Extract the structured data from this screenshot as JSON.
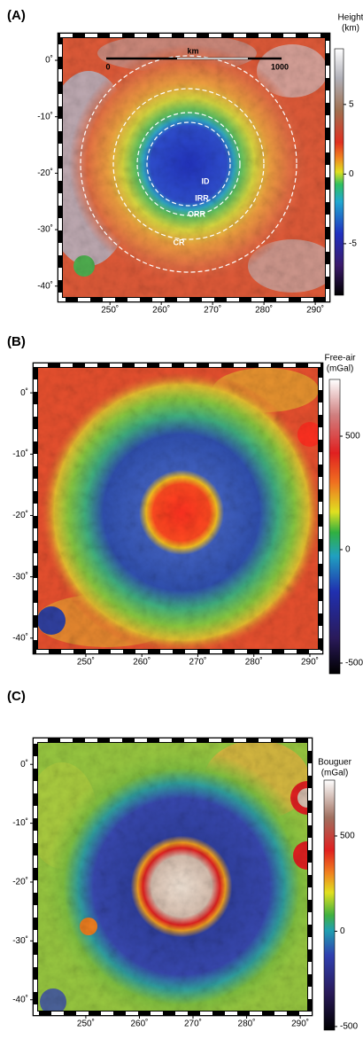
{
  "panels": [
    {
      "label": "(A)",
      "colorbar": {
        "title": "Height",
        "unit": "(km)",
        "clim": [
          -8.7,
          9.0
        ],
        "ticks": [
          5,
          0,
          -5
        ]
      },
      "xlim": [
        240.3,
        292.4
      ],
      "ylim": [
        -42.4,
        4.4
      ],
      "xticks": [
        {
          "value": 250,
          "label": "250˚"
        },
        {
          "value": 260,
          "label": "260˚"
        },
        {
          "value": 270,
          "label": "270˚"
        },
        {
          "value": 280,
          "label": "280˚"
        },
        {
          "value": 290,
          "label": "290˚"
        }
      ],
      "yticks": [
        {
          "value": 0,
          "label": "0˚"
        },
        {
          "value": -10,
          "label": "-10˚"
        },
        {
          "value": -20,
          "label": "-20˚"
        },
        {
          "value": -30,
          "label": "-30˚"
        },
        {
          "value": -40,
          "label": "-40˚"
        }
      ],
      "annotations": [
        "km",
        "0",
        "1000",
        "ID",
        "IRR",
        "ORR",
        "CR"
      ]
    },
    {
      "label": "(B)",
      "colorbar": {
        "title": "Free-air",
        "unit": "(mGal)",
        "clim": [
          -547,
          750
        ],
        "ticks": [
          500,
          0,
          -500
        ]
      },
      "xlim": [
        241.0,
        291.9
      ],
      "ylim": [
        -42.2,
        4.5
      ],
      "xticks": [
        {
          "value": 250,
          "label": "250˚"
        },
        {
          "value": 260,
          "label": "260˚"
        },
        {
          "value": 270,
          "label": "270˚"
        },
        {
          "value": 280,
          "label": "280˚"
        },
        {
          "value": 290,
          "label": "290˚"
        }
      ],
      "yticks": [
        {
          "value": 0,
          "label": "0˚"
        },
        {
          "value": -10,
          "label": "-10˚"
        },
        {
          "value": -20,
          "label": "-20˚"
        },
        {
          "value": -30,
          "label": "-30˚"
        },
        {
          "value": -40,
          "label": "-40˚"
        }
      ]
    },
    {
      "label": "(C)",
      "colorbar": {
        "title": "Bouguer",
        "unit": "(mGal)",
        "clim": [
          -519,
          793
        ],
        "ticks": [
          500,
          0,
          -500
        ]
      },
      "xlim": [
        240.6,
        291.8
      ],
      "ylim": [
        -42.3,
        4.1
      ],
      "xticks": [
        {
          "value": 250,
          "label": "250˚"
        },
        {
          "value": 260,
          "label": "260˚"
        },
        {
          "value": 270,
          "label": "270˚"
        },
        {
          "value": 280,
          "label": "280˚"
        },
        {
          "value": 290,
          "label": "290˚"
        }
      ],
      "yticks": [
        {
          "value": 0,
          "label": "0˚"
        },
        {
          "value": -10,
          "label": "-10˚"
        },
        {
          "value": -20,
          "label": "-20˚"
        },
        {
          "value": -30,
          "label": "-30˚"
        },
        {
          "value": -40,
          "label": "-40˚"
        }
      ]
    }
  ]
}
